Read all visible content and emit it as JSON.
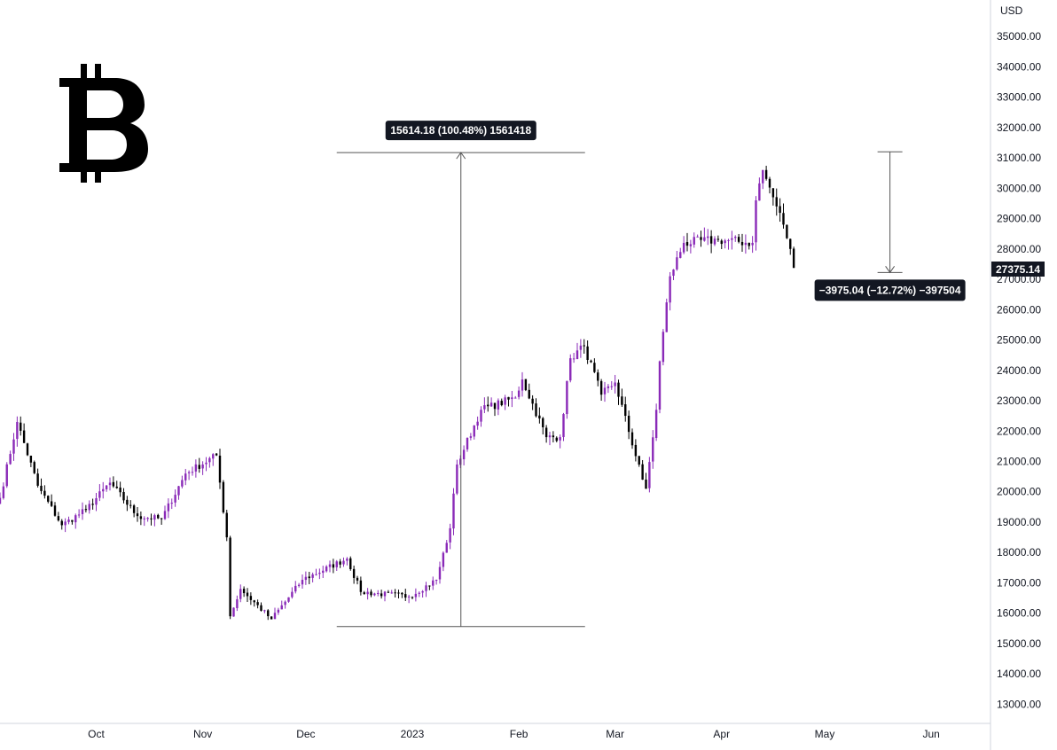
{
  "chart_data": {
    "type": "candlestick",
    "symbol_logo": "bitcoin-logo-icon",
    "currency": "USD",
    "ylim": [
      12400,
      36200
    ],
    "y_ticks": [
      13000,
      14000,
      15000,
      16000,
      17000,
      18000,
      19000,
      20000,
      21000,
      22000,
      23000,
      24000,
      25000,
      26000,
      27000,
      28000,
      29000,
      30000,
      31000,
      32000,
      33000,
      34000,
      35000
    ],
    "x_tick_labels": [
      {
        "label": "Oct",
        "date": "2022-10-01"
      },
      {
        "label": "Nov",
        "date": "2022-11-01"
      },
      {
        "label": "Dec",
        "date": "2022-12-01"
      },
      {
        "label": "2023",
        "date": "2023-01-01"
      },
      {
        "label": "Feb",
        "date": "2023-02-01"
      },
      {
        "label": "Mar",
        "date": "2023-03-01"
      },
      {
        "label": "Apr",
        "date": "2023-04-01"
      },
      {
        "label": "May",
        "date": "2023-05-01"
      },
      {
        "label": "Jun",
        "date": "2023-06-01"
      }
    ],
    "x_range": [
      "2022-09-03",
      "2023-06-18"
    ],
    "last_price": 27375.14,
    "last_price_label": "27375.14",
    "colors": {
      "up": "#8a2ab8",
      "down": "#000000",
      "tag": "#131722",
      "grid": "#e0e3eb"
    },
    "key_closes": [
      {
        "date": "2022-09-03",
        "close": 19800
      },
      {
        "date": "2022-09-08",
        "close": 22300
      },
      {
        "date": "2022-09-14",
        "close": 20200
      },
      {
        "date": "2022-09-21",
        "close": 18900
      },
      {
        "date": "2022-09-28",
        "close": 19400
      },
      {
        "date": "2022-10-05",
        "close": 20300
      },
      {
        "date": "2022-10-13",
        "close": 19200
      },
      {
        "date": "2022-10-20",
        "close": 19100
      },
      {
        "date": "2022-10-27",
        "close": 20600
      },
      {
        "date": "2022-11-05",
        "close": 21200
      },
      {
        "date": "2022-11-08",
        "close": 18500
      },
      {
        "date": "2022-11-09",
        "close": 15900
      },
      {
        "date": "2022-11-12",
        "close": 16800
      },
      {
        "date": "2022-11-21",
        "close": 15800
      },
      {
        "date": "2022-11-30",
        "close": 17100
      },
      {
        "date": "2022-12-13",
        "close": 17800
      },
      {
        "date": "2022-12-17",
        "close": 16700
      },
      {
        "date": "2022-12-31",
        "close": 16550
      },
      {
        "date": "2023-01-08",
        "close": 17100
      },
      {
        "date": "2023-01-12",
        "close": 18800
      },
      {
        "date": "2023-01-14",
        "close": 20900
      },
      {
        "date": "2023-01-21",
        "close": 22700
      },
      {
        "date": "2023-01-31",
        "close": 23100
      },
      {
        "date": "2023-02-02",
        "close": 23700
      },
      {
        "date": "2023-02-09",
        "close": 21800
      },
      {
        "date": "2023-02-13",
        "close": 21800
      },
      {
        "date": "2023-02-16",
        "close": 24400
      },
      {
        "date": "2023-02-20",
        "close": 24800
      },
      {
        "date": "2023-02-25",
        "close": 23200
      },
      {
        "date": "2023-03-01",
        "close": 23600
      },
      {
        "date": "2023-03-09",
        "close": 20400
      },
      {
        "date": "2023-03-10",
        "close": 20100
      },
      {
        "date": "2023-03-13",
        "close": 22700
      },
      {
        "date": "2023-03-14",
        "close": 24300
      },
      {
        "date": "2023-03-17",
        "close": 27100
      },
      {
        "date": "2023-03-21",
        "close": 28200
      },
      {
        "date": "2023-03-31",
        "close": 28300
      },
      {
        "date": "2023-04-10",
        "close": 28200
      },
      {
        "date": "2023-04-11",
        "close": 29600
      },
      {
        "date": "2023-04-13",
        "close": 30600
      },
      {
        "date": "2023-04-17",
        "close": 29400
      },
      {
        "date": "2023-04-19",
        "close": 28800
      },
      {
        "date": "2023-04-21",
        "close": 28000
      },
      {
        "date": "2023-04-22",
        "close": 27375
      }
    ],
    "annotations": [
      {
        "label": "15614.18 (100.48%) 1561418",
        "from": 15560,
        "to": 31174,
        "date_from": "2022-12-10",
        "date_to": "2023-01-18",
        "arrow_date": "2023-01-27"
      },
      {
        "label": "−3975.04 (−12.72%) −397504",
        "from": 31200,
        "to": 27225,
        "date_from": "2023-05-15",
        "date_to": "2023-05-24",
        "arrow_date": "2023-05-20"
      }
    ]
  }
}
